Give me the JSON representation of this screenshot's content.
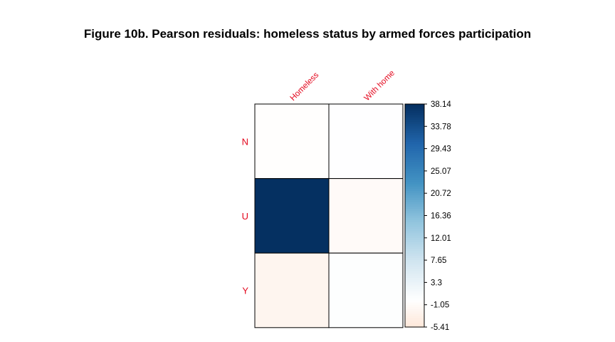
{
  "page": {
    "title": "Figure 10b. Pearson residuals: homeless status by armed forces participation"
  },
  "colors": {
    "positive_max": "#053061",
    "negative_max": "#67001F",
    "zero": "#FFFFFF",
    "label": "#E3061C",
    "grid": "#000000"
  },
  "chart_data": {
    "type": "heatmap",
    "title": "Figure 10b. Pearson residuals: homeless status by armed forces participation",
    "columns": [
      "Homeless",
      "With home"
    ],
    "rows": [
      "N",
      "U",
      "Y"
    ],
    "values": [
      [
        -0.3,
        0.2
      ],
      [
        38.14,
        -1.0
      ],
      [
        -2.2,
        0.3
      ]
    ],
    "colorbar_ticks": [
      "38.14",
      "33.78",
      "29.43",
      "25.07",
      "20.72",
      "16.36",
      "12.01",
      "7.65",
      "3.3",
      "-1.05",
      "-5.41"
    ],
    "range": [
      -5.41,
      38.14
    ]
  }
}
